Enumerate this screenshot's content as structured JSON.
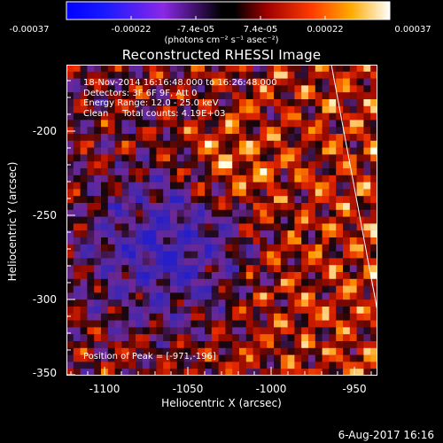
{
  "colorbar": {
    "tick_labels": [
      "-0.00037",
      "-0.00022",
      "-7.4e-05",
      "7.4e-05",
      "0.00022",
      "0.00037"
    ],
    "units": "(photons cm⁻² s⁻¹ asec⁻²)"
  },
  "title": "Reconstructed RHESSI Image",
  "info": {
    "line1": "18-Nov-2014 16:16:48.000 to 16:26:48.000",
    "line2": "Detectors: 3F 6F 9F, Att 0",
    "line3": "Energy Range: 12.0 - 25.0 keV",
    "line4": "Clean     Total counts: 4.19E+03"
  },
  "peak_text": "Position of Peak = [-971,-196]",
  "axes": {
    "xlabel": "Heliocentric X (arcsec)",
    "ylabel": "Heliocentric Y (arcsec)",
    "xticks": [
      "-1100",
      "-1050",
      "-1000",
      "-950"
    ],
    "yticks": [
      "-200",
      "-250",
      "-300",
      "-350"
    ]
  },
  "datestamp": "6-Aug-2017 16:16"
}
